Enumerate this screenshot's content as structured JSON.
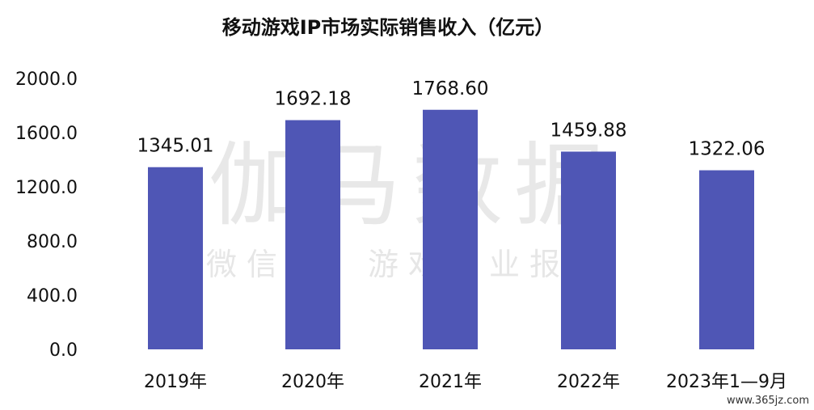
{
  "chart_data": {
    "type": "bar",
    "title": "移动游戏IP市场实际销售收入（亿元）",
    "categories": [
      "2019年",
      "2020年",
      "2021年",
      "2022年",
      "2023年1—9月"
    ],
    "values": [
      1345.01,
      1692.18,
      1768.6,
      1459.88,
      1322.06
    ],
    "value_labels": [
      "1345.01",
      "1692.18",
      "1768.60",
      "1459.88",
      "1322.06"
    ],
    "yticks": [
      "0.0",
      "400.0",
      "800.0",
      "1200.0",
      "1600.0",
      "2000.0"
    ],
    "ylim": [
      0,
      2000
    ],
    "xlabel": "",
    "ylabel": "",
    "grid": false,
    "bar_color": "#4f56b5"
  },
  "watermark": {
    "main": "伽马数据",
    "sub": "微信号：游戏产业报告"
  },
  "site_mark": "www.365jz.com"
}
